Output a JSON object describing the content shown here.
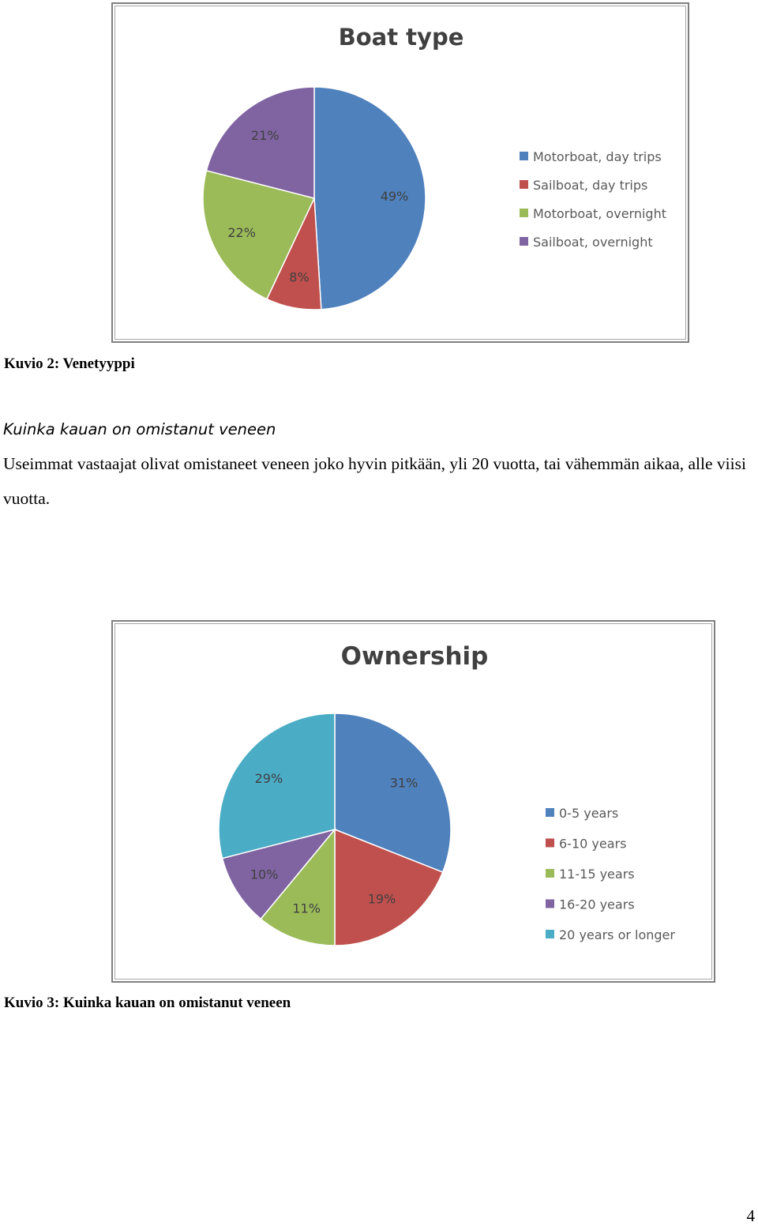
{
  "chart_data": [
    {
      "type": "pie",
      "title": "Boat type",
      "categories": [
        "Motorboat, day trips",
        "Sailboat, day trips",
        "Motorboat, overnight",
        "Sailboat, overnight"
      ],
      "values": [
        49,
        8,
        22,
        21
      ],
      "labels": [
        "49%",
        "8%",
        "22%",
        "21%"
      ],
      "colors": [
        "#4f81bd",
        "#c0504d",
        "#9bbb59",
        "#8064a2"
      ],
      "legend": "right"
    },
    {
      "type": "pie",
      "title": "Ownership",
      "categories": [
        "0-5 years",
        "6-10 years",
        "11-15 years",
        "16-20 years",
        "20 years or longer"
      ],
      "values": [
        31,
        19,
        11,
        10,
        29
      ],
      "labels": [
        "31%",
        "19%",
        "11%",
        "10%",
        "29%"
      ],
      "colors": [
        "#4f81bd",
        "#c0504d",
        "#9bbb59",
        "#8064a2",
        "#4bacc6"
      ],
      "legend": "right"
    }
  ],
  "document": {
    "caption1": "Kuvio 2: Venetyyppi",
    "section_heading": "Kuinka kauan on omistanut veneen",
    "section_body": "Useimmat vastaajat olivat omistaneet veneen joko hyvin pitkään, yli 20 vuotta, tai vähemmän aikaa, alle viisi vuotta.",
    "caption2": "Kuvio 3: Kuinka kauan on omistanut veneen",
    "page_number": "4"
  }
}
